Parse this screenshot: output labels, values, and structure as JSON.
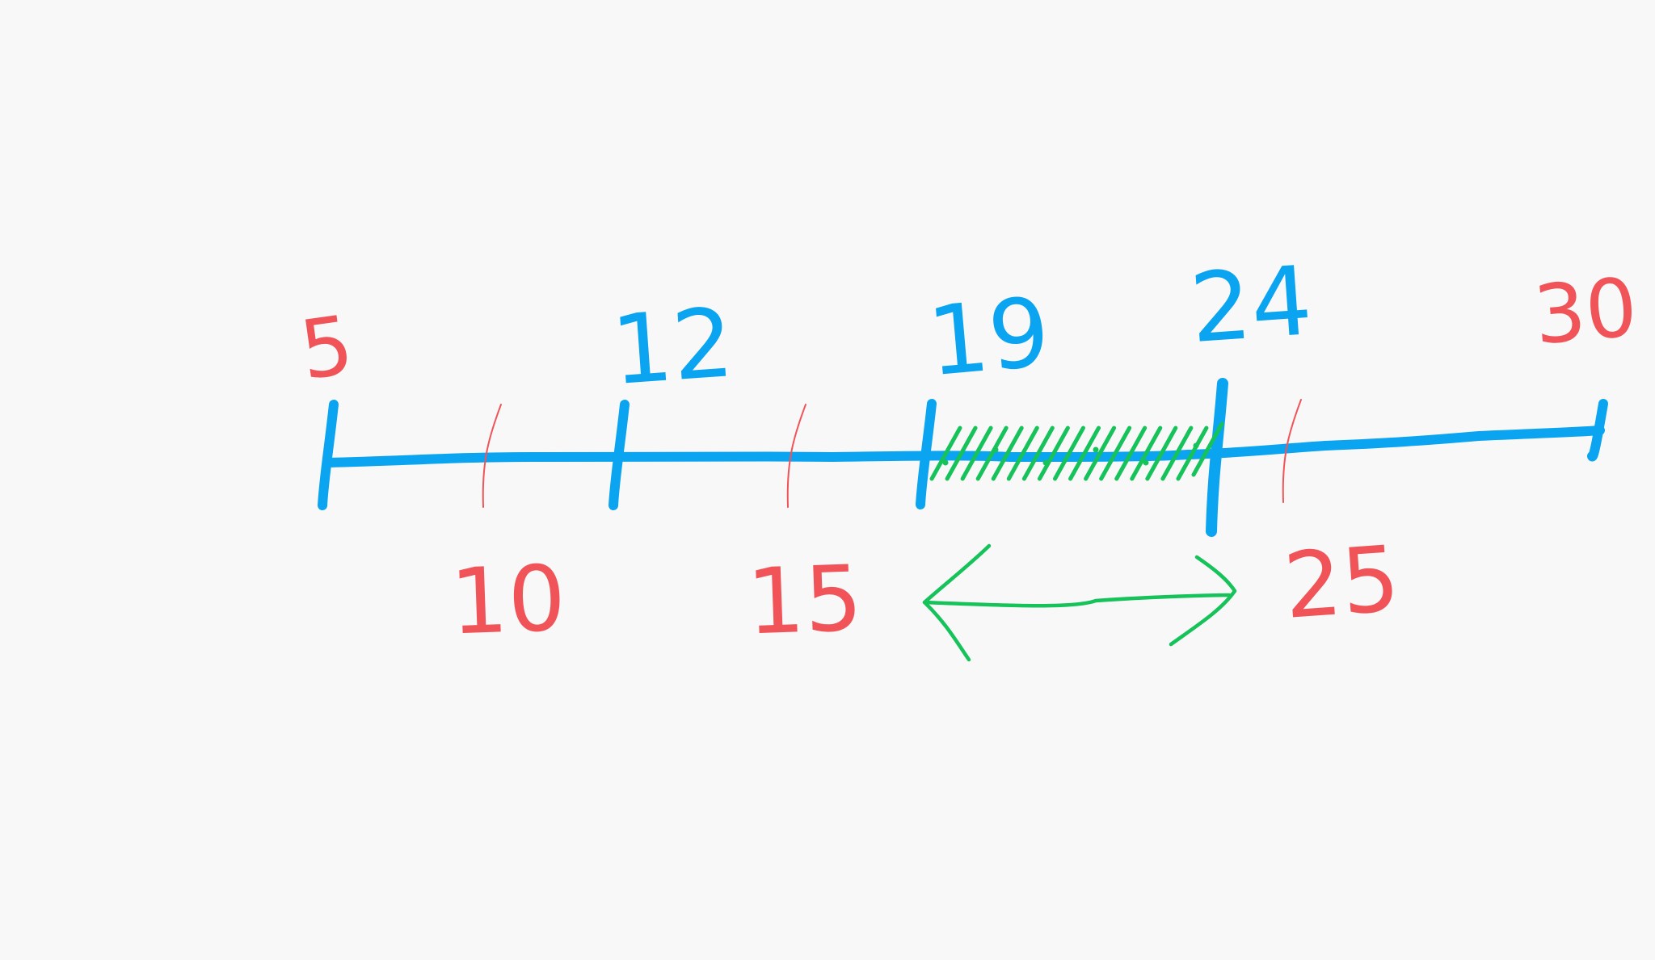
{
  "colors": {
    "background": "#f8f8f8",
    "main_line": "#0aa4f0",
    "major_ticks": "#0aa4f0",
    "minor_ticks": "#f05459",
    "labels_blue": "#0aa4f0",
    "labels_red": "#f05459",
    "highlight": "#16c25a"
  },
  "number_line": {
    "min": 5,
    "max": 30,
    "blue_marks": [
      {
        "value": 5,
        "label": ""
      },
      {
        "value": 12,
        "label": "12"
      },
      {
        "value": 19,
        "label": "19"
      },
      {
        "value": 24,
        "label": "24"
      },
      {
        "value": 30,
        "label": ""
      }
    ],
    "red_marks": [
      {
        "value": 10,
        "label": "10"
      },
      {
        "value": 15,
        "label": "15"
      },
      {
        "value": 25,
        "label": "25"
      }
    ],
    "end_labels": [
      {
        "value": 5,
        "label": "5"
      },
      {
        "value": 30,
        "label": "30"
      }
    ]
  },
  "highlight_region": {
    "from": 19,
    "to": 24
  }
}
